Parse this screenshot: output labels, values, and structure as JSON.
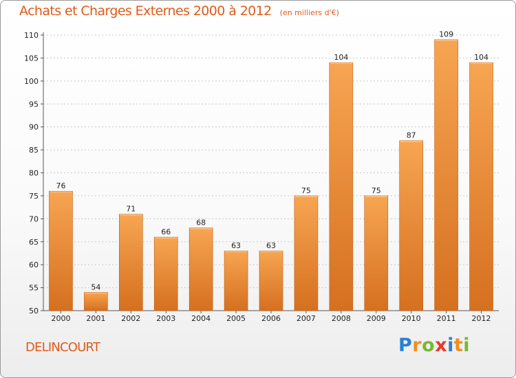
{
  "title": "Achats et Charges Externes 2000 à 2012",
  "unit": "(en milliers d'€)",
  "place": "DELINCOURT",
  "logo": {
    "letters": [
      "P",
      "r",
      "o",
      "x",
      "i",
      "t",
      "i"
    ],
    "colors": [
      "#2a7fd4",
      "#f28c1e",
      "#7ab830",
      "#e8392b",
      "#2a7fd4",
      "#f28c1e",
      "#7ab830"
    ]
  },
  "colors": {
    "title": "#e05a1a",
    "bar_top": "#f7a552",
    "bar_bottom": "#d5701f",
    "bar_edge": "#c45f15"
  },
  "chart_data": {
    "type": "bar",
    "categories": [
      "2000",
      "2001",
      "2002",
      "2003",
      "2004",
      "2005",
      "2006",
      "2007",
      "2008",
      "2009",
      "2010",
      "2011",
      "2012"
    ],
    "values": [
      76,
      54,
      71,
      66,
      68,
      63,
      63,
      75,
      104,
      75,
      87,
      109,
      104
    ],
    "ylim": [
      50,
      110
    ],
    "yticks": [
      50,
      55,
      60,
      65,
      70,
      75,
      80,
      85,
      90,
      95,
      100,
      105,
      110
    ],
    "grid": "horizontal dashed",
    "legend": "none"
  }
}
